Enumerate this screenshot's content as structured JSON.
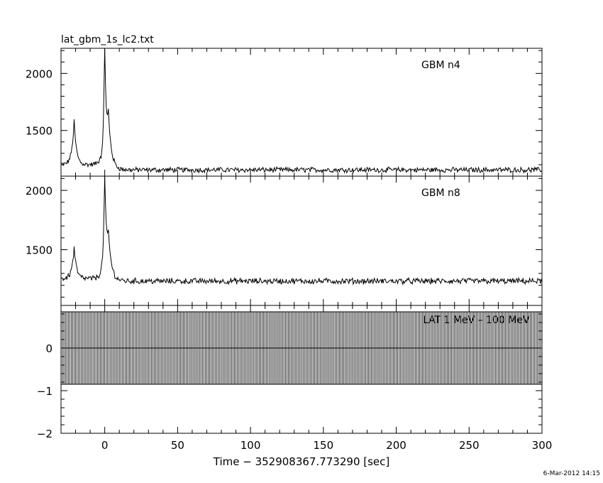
{
  "file_title": "lat_gbm_1s_lc2.txt",
  "timestamp": "6-Mar-2012 14:15",
  "chart_data": {
    "type": "line",
    "xlabel": "Time − 352908367.773290 [sec]",
    "xlim": [
      -30,
      300
    ],
    "x_ticks": [
      0,
      50,
      100,
      150,
      200,
      250,
      300
    ],
    "x_tick_labels": [
      "0",
      "50",
      "100",
      "150",
      "200",
      "250",
      "300"
    ],
    "panels": [
      {
        "label": "GBM n4",
        "ylim": [
          1100,
          2220
        ],
        "y_ticks": [
          1500,
          2000
        ],
        "y_tick_labels": [
          "1500",
          "2000"
        ],
        "baseline": 1155,
        "noise": 20,
        "peaks": [
          {
            "t": -21,
            "amplitude": 380,
            "width": 1.6
          },
          {
            "t": 0,
            "amplitude": 1020,
            "width": 0.9
          },
          {
            "t": 2.5,
            "amplitude": 460,
            "width": 2.2
          }
        ],
        "shoulder": {
          "t_start": -30,
          "t_end": -3,
          "level": 45
        }
      },
      {
        "label": "GBM n8",
        "ylim": [
          1030,
          2120
        ],
        "y_ticks": [
          1500,
          2000
        ],
        "y_tick_labels": [
          "1500",
          "2000"
        ],
        "baseline": 1235,
        "noise": 22,
        "peaks": [
          {
            "t": -21,
            "amplitude": 265,
            "width": 1.6
          },
          {
            "t": 0,
            "amplitude": 855,
            "width": 0.9
          },
          {
            "t": 2.5,
            "amplitude": 380,
            "width": 2.2
          }
        ],
        "shoulder": {
          "t_start": -30,
          "t_end": -3,
          "level": 20
        }
      },
      {
        "label": "LAT 1 MeV – 100 MeV",
        "ylim": [
          -2,
          1
        ],
        "y_ticks": [
          -2,
          -1,
          0
        ],
        "y_tick_labels": [
          "−2",
          "−1",
          "0"
        ],
        "value": 0,
        "error": 0.85
      }
    ]
  }
}
